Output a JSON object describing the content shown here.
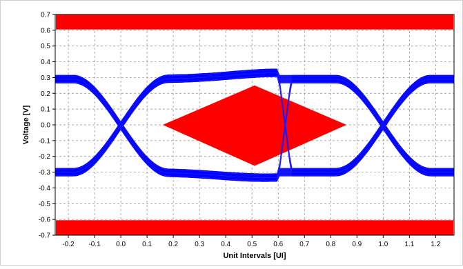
{
  "chart_data": {
    "type": "eye_diagram",
    "title": "",
    "xlabel": "Unit Intervals [UI]",
    "ylabel": "Voltage [V]",
    "xlim": [
      -0.25,
      1.27
    ],
    "ylim": [
      -0.7,
      0.7
    ],
    "grid": true,
    "x_ticks": [
      {
        "value": -0.2,
        "label": "-0.2"
      },
      {
        "value": -0.1,
        "label": "-0.1"
      },
      {
        "value": 0.0,
        "label": "0.0"
      },
      {
        "value": 0.1,
        "label": "0.1"
      },
      {
        "value": 0.2,
        "label": "0.2"
      },
      {
        "value": 0.3,
        "label": "0.3"
      },
      {
        "value": 0.4,
        "label": "0.4"
      },
      {
        "value": 0.5,
        "label": "0.5"
      },
      {
        "value": 0.6,
        "label": "0.6"
      },
      {
        "value": 0.7,
        "label": "0.7"
      },
      {
        "value": 0.8,
        "label": "0.8"
      },
      {
        "value": 0.9,
        "label": "0.9"
      },
      {
        "value": 1.0,
        "label": "1.0"
      },
      {
        "value": 1.1,
        "label": "1.1"
      },
      {
        "value": 1.2,
        "label": "1.2"
      }
    ],
    "y_ticks": [
      {
        "value": 0.7,
        "label": "0.7"
      },
      {
        "value": 0.6,
        "label": "0.6"
      },
      {
        "value": 0.5,
        "label": "0.5"
      },
      {
        "value": 0.4,
        "label": "0.4"
      },
      {
        "value": 0.3,
        "label": "0.3"
      },
      {
        "value": 0.2,
        "label": "0.2"
      },
      {
        "value": 0.1,
        "label": "0.1"
      },
      {
        "value": 0.0,
        "label": "0.0"
      },
      {
        "value": -0.1,
        "label": "-0.1"
      },
      {
        "value": -0.2,
        "label": "-0.2"
      },
      {
        "value": -0.3,
        "label": "-0.3"
      },
      {
        "value": -0.4,
        "label": "-0.4"
      },
      {
        "value": -0.5,
        "label": "-0.5"
      },
      {
        "value": -0.6,
        "label": "-0.6"
      },
      {
        "value": -0.7,
        "label": "-0.7"
      }
    ],
    "eye": {
      "color": "#0000ff",
      "crossings_ui": [
        0.0,
        1.0
      ],
      "high_level_v": 0.29,
      "low_level_v": -0.3,
      "upper_band_v": [
        0.27,
        0.36
      ],
      "lower_band_v": [
        -0.36,
        -0.25
      ],
      "band_thickness_v": 0.05
    },
    "mask": {
      "color": "#ff0000",
      "top_bar_v": [
        0.605,
        0.7
      ],
      "bottom_bar_v": [
        -0.7,
        -0.605
      ],
      "diamond": [
        {
          "x": 0.16,
          "y": 0.0
        },
        {
          "x": 0.51,
          "y": 0.25
        },
        {
          "x": 0.86,
          "y": 0.0
        },
        {
          "x": 0.51,
          "y": -0.26
        }
      ]
    }
  }
}
